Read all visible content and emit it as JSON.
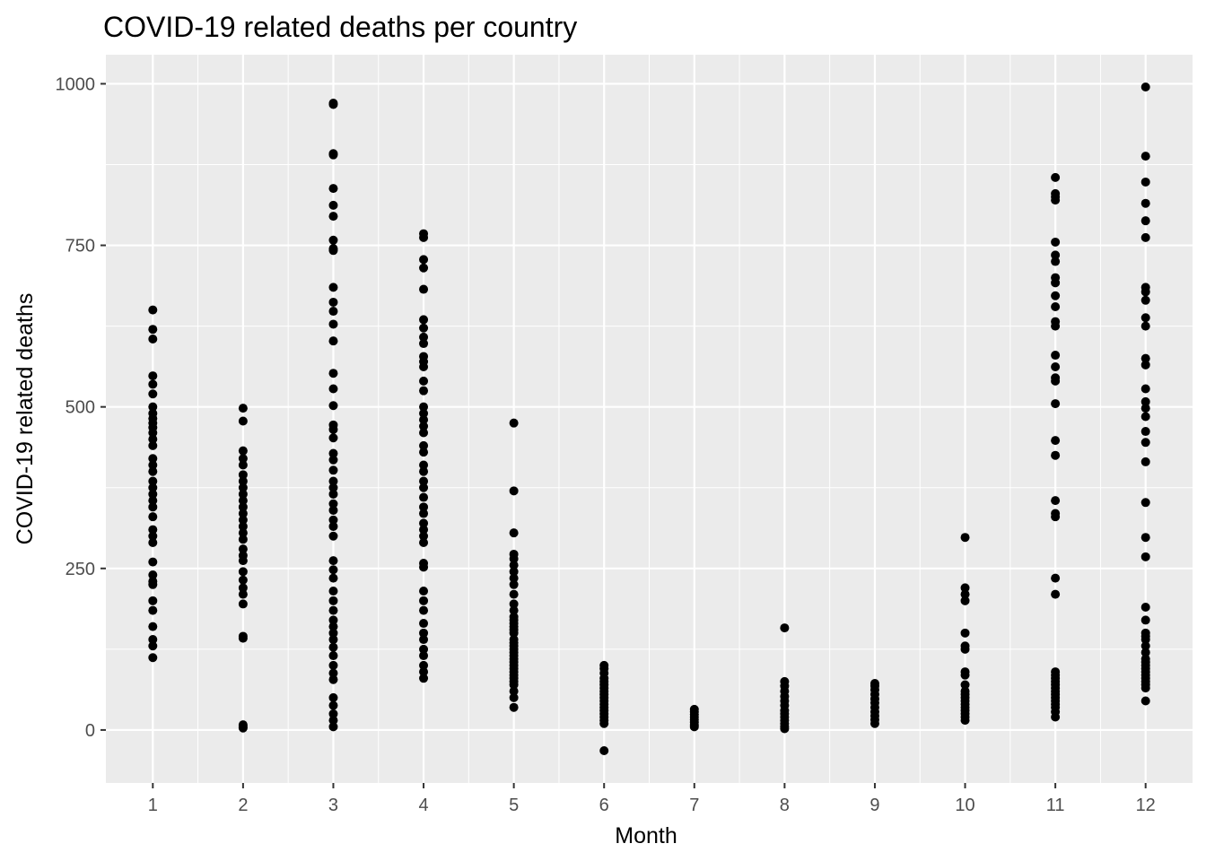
{
  "chart_data": {
    "type": "scatter",
    "title": "COVID-19 related deaths per country",
    "xlabel": "Month",
    "ylabel": "COVID-19 related deaths",
    "x_ticks": [
      1,
      2,
      3,
      4,
      5,
      6,
      7,
      8,
      9,
      10,
      11,
      12
    ],
    "y_ticks": [
      0,
      250,
      500,
      750,
      1000
    ],
    "xlim": [
      0.48,
      12.52
    ],
    "ylim": [
      -82,
      1045
    ],
    "grid": true,
    "legend": "none",
    "colors": {
      "panel": "#ebebeb",
      "grid": "#ffffff",
      "point": "#000000",
      "tick_text": "#4d4d4d",
      "tick_mark": "#333333"
    },
    "series": [
      {
        "month": 1,
        "y": [
          650,
          620,
          605,
          548,
          535,
          520,
          500,
          490,
          482,
          475,
          468,
          460,
          450,
          440,
          420,
          410,
          400,
          385,
          375,
          365,
          355,
          345,
          330,
          310,
          300,
          290,
          260,
          240,
          230,
          225,
          200,
          185,
          160,
          140,
          130,
          112
        ]
      },
      {
        "month": 2,
        "y": [
          498,
          478,
          432,
          420,
          410,
          395,
          385,
          375,
          365,
          355,
          345,
          335,
          325,
          315,
          305,
          295,
          280,
          270,
          262,
          245,
          232,
          220,
          210,
          195,
          145,
          142,
          8,
          5,
          3
        ]
      },
      {
        "month": 3,
        "y": [
          970,
          968,
          892,
          890,
          838,
          812,
          795,
          758,
          745,
          742,
          685,
          662,
          648,
          628,
          602,
          552,
          528,
          502,
          472,
          465,
          452,
          428,
          418,
          402,
          385,
          375,
          365,
          350,
          340,
          325,
          315,
          300,
          262,
          248,
          235,
          215,
          200,
          185,
          170,
          160,
          150,
          140,
          128,
          115,
          100,
          88,
          78,
          50,
          38,
          25,
          15,
          5
        ]
      },
      {
        "month": 4,
        "y": [
          768,
          762,
          728,
          715,
          682,
          635,
          622,
          608,
          598,
          578,
          570,
          562,
          540,
          525,
          500,
          490,
          480,
          470,
          460,
          440,
          430,
          410,
          400,
          385,
          375,
          360,
          345,
          335,
          320,
          310,
          300,
          290,
          258,
          252,
          215,
          200,
          185,
          165,
          150,
          140,
          125,
          115,
          100,
          90,
          80
        ]
      },
      {
        "month": 5,
        "y": [
          475,
          370,
          305,
          272,
          265,
          255,
          245,
          235,
          225,
          210,
          195,
          185,
          175,
          170,
          165,
          160,
          155,
          150,
          140,
          135,
          130,
          125,
          120,
          115,
          110,
          105,
          100,
          95,
          90,
          85,
          80,
          75,
          70,
          60,
          50,
          35
        ]
      },
      {
        "month": 6,
        "y": [
          100,
          95,
          88,
          80,
          75,
          70,
          65,
          60,
          55,
          50,
          45,
          40,
          35,
          30,
          25,
          20,
          15,
          10,
          -32
        ]
      },
      {
        "month": 7,
        "y": [
          32,
          28,
          24,
          20,
          16,
          12,
          8,
          5
        ]
      },
      {
        "month": 8,
        "y": [
          158,
          75,
          68,
          60,
          52,
          45,
          38,
          30,
          25,
          20,
          15,
          10,
          5,
          2
        ]
      },
      {
        "month": 9,
        "y": [
          72,
          68,
          62,
          55,
          48,
          42,
          35,
          28,
          22,
          16,
          10
        ]
      },
      {
        "month": 10,
        "y": [
          298,
          220,
          210,
          200,
          150,
          130,
          125,
          90,
          85,
          70,
          60,
          55,
          50,
          45,
          40,
          35,
          30,
          25,
          20,
          15
        ]
      },
      {
        "month": 11,
        "y": [
          855,
          830,
          825,
          820,
          755,
          735,
          725,
          700,
          692,
          672,
          655,
          632,
          625,
          580,
          562,
          545,
          540,
          505,
          448,
          425,
          355,
          335,
          330,
          235,
          210,
          90,
          85,
          80,
          75,
          70,
          65,
          60,
          55,
          50,
          45,
          40,
          35,
          28,
          20
        ]
      },
      {
        "month": 12,
        "y": [
          995,
          888,
          848,
          815,
          788,
          762,
          685,
          678,
          665,
          638,
          625,
          575,
          565,
          528,
          508,
          498,
          485,
          462,
          445,
          415,
          352,
          298,
          268,
          190,
          170,
          150,
          145,
          140,
          130,
          120,
          110,
          105,
          100,
          95,
          90,
          85,
          80,
          75,
          70,
          65,
          45
        ]
      }
    ]
  }
}
